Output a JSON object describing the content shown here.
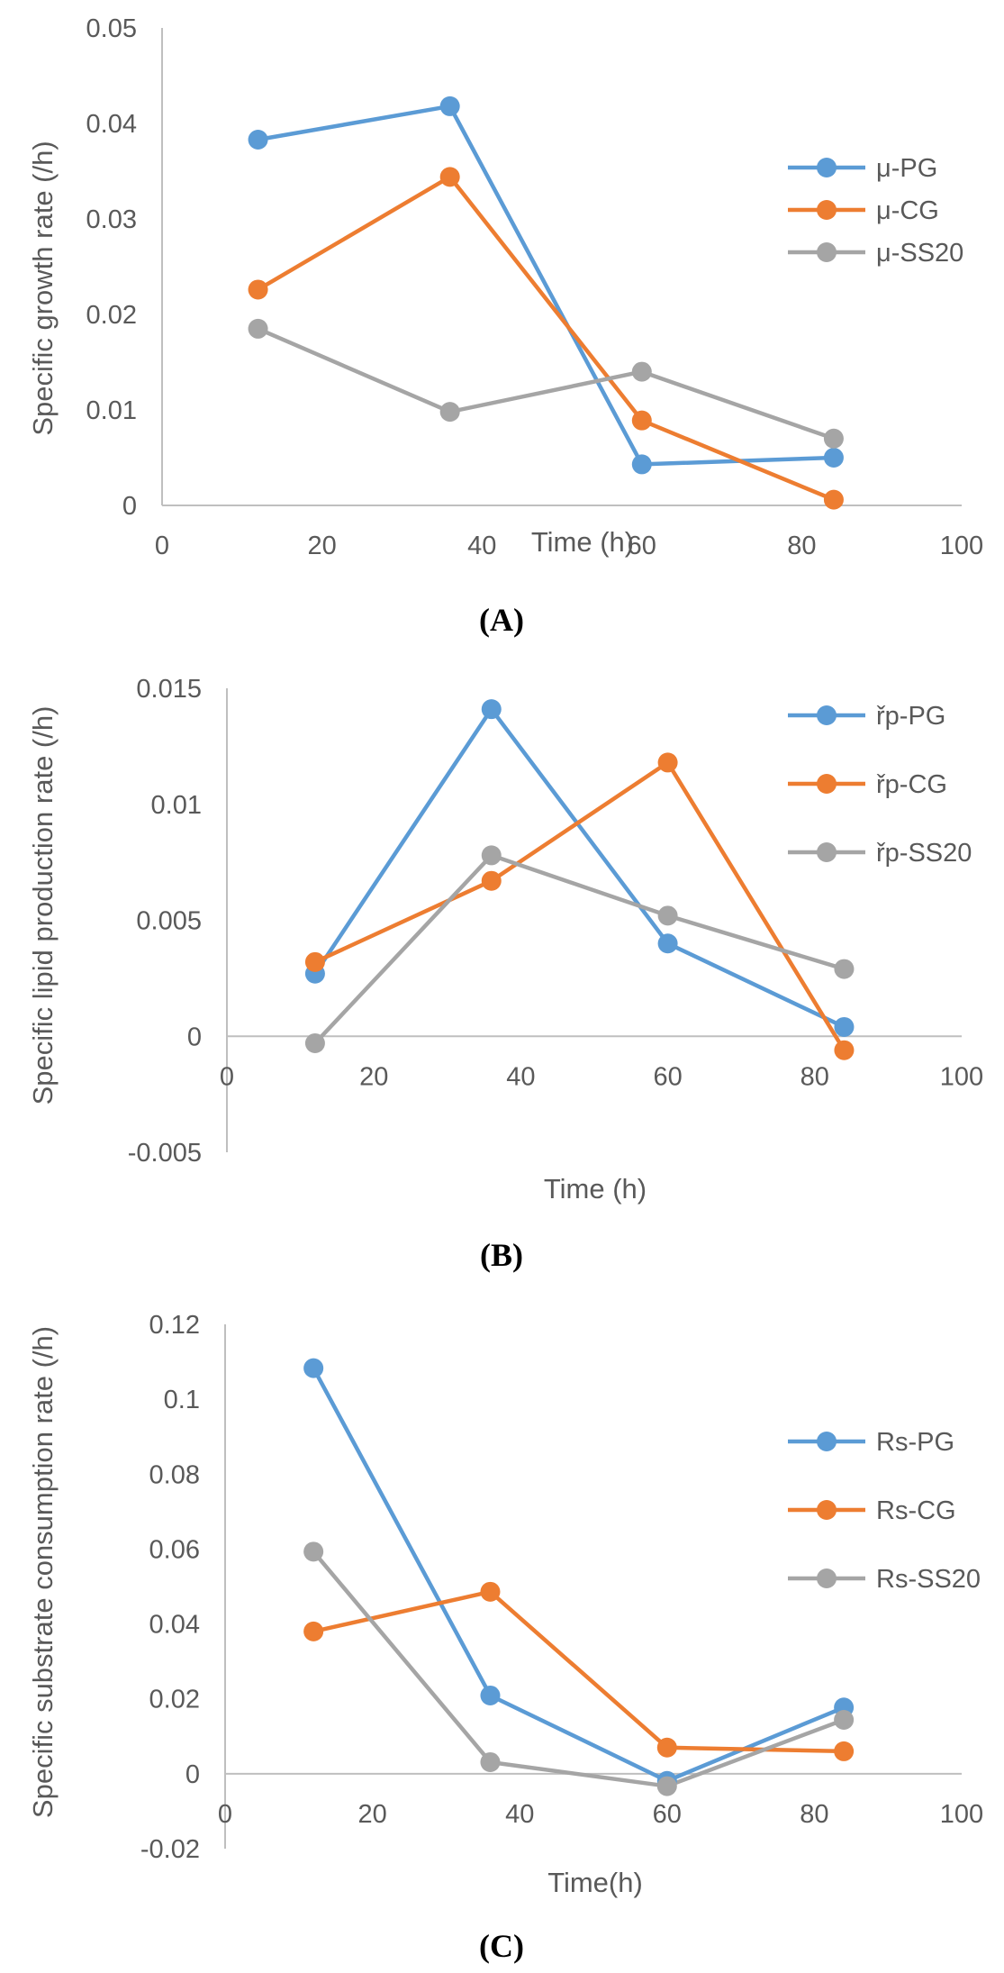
{
  "chart_data": [
    {
      "type": "line",
      "panel_label": "A",
      "xlabel": "Time (h)",
      "ylabel": "Specific growth rate (/h)",
      "xlim": [
        0,
        100
      ],
      "ylim": [
        0,
        0.05
      ],
      "xticks": [
        "0",
        "20",
        "40",
        "60",
        "80",
        "100"
      ],
      "yticks": [
        "0",
        "0.01",
        "0.02",
        "0.03",
        "0.04",
        "0.05"
      ],
      "x": [
        12,
        36,
        60,
        84
      ],
      "legend_position": "right",
      "series": [
        {
          "name": "μ-PG",
          "color": "#5B9BD5",
          "values": [
            0.0383,
            0.0418,
            0.0043,
            0.005
          ]
        },
        {
          "name": "μ-CG",
          "color": "#ED7D31",
          "values": [
            0.0226,
            0.0344,
            0.0089,
            0.0006
          ]
        },
        {
          "name": "μ-SS20",
          "color": "#A5A5A5",
          "values": [
            0.0185,
            0.0098,
            0.014,
            0.007
          ]
        }
      ]
    },
    {
      "type": "line",
      "panel_label": "B",
      "xlabel": "Time (h)",
      "ylabel": "Specific lipid production rate (/h)",
      "xlim": [
        0,
        100
      ],
      "ylim": [
        -0.005,
        0.015
      ],
      "xticks": [
        "0",
        "20",
        "40",
        "60",
        "80",
        "100"
      ],
      "yticks": [
        "-0.005",
        "0",
        "0.005",
        "0.01",
        "0.015"
      ],
      "x": [
        12,
        36,
        60,
        84
      ],
      "legend_position": "right",
      "series": [
        {
          "name": "řp-PG",
          "color": "#5B9BD5",
          "values": [
            0.0027,
            0.0141,
            0.004,
            0.0004
          ]
        },
        {
          "name": "řp-CG",
          "color": "#ED7D31",
          "values": [
            0.0032,
            0.0067,
            0.0118,
            -0.0006
          ]
        },
        {
          "name": "řp-SS20",
          "color": "#A5A5A5",
          "values": [
            -0.0003,
            0.0078,
            0.0052,
            0.0029
          ]
        }
      ]
    },
    {
      "type": "line",
      "panel_label": "C",
      "xlabel": "Time(h)",
      "ylabel": "Specific substrate consumption rate (/h)",
      "xlim": [
        0,
        100
      ],
      "ylim": [
        -0.02,
        0.12
      ],
      "xticks": [
        "0",
        "20",
        "40",
        "60",
        "80",
        "100"
      ],
      "yticks": [
        "-0.02",
        "0",
        "0.02",
        "0.04",
        "0.06",
        "0.08",
        "0.1",
        "0.12"
      ],
      "x": [
        12,
        36,
        60,
        84
      ],
      "legend_position": "right",
      "series": [
        {
          "name": "Rs-PG",
          "color": "#5B9BD5",
          "values": [
            0.1083,
            0.0209,
            -0.0019,
            0.0177
          ]
        },
        {
          "name": "Rs-CG",
          "color": "#ED7D31",
          "values": [
            0.038,
            0.0486,
            0.007,
            0.006
          ]
        },
        {
          "name": "Rs-SS20",
          "color": "#A5A5A5",
          "values": [
            0.0593,
            0.0031,
            -0.0033,
            0.0144
          ]
        }
      ]
    }
  ]
}
